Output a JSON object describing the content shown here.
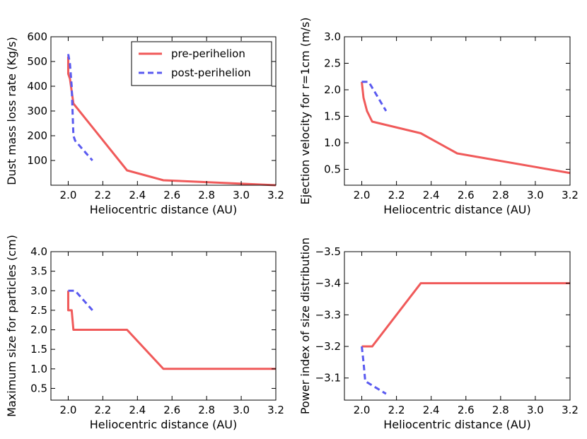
{
  "colors": {
    "pre": "#f05a5a",
    "post": "#5a5af0",
    "axis": "#000000",
    "background": "#ffffff"
  },
  "legend": {
    "placement": "top-right",
    "entries": [
      {
        "label": "pre-perihelion",
        "series": "pre"
      },
      {
        "label": "post-perihelion",
        "series": "post"
      }
    ]
  },
  "chart_data": [
    {
      "type": "line",
      "panel": "top-left",
      "title": "",
      "xlabel": "Heliocentric distance (AU)",
      "ylabel": "Dust mass loss rate (Kg/s)",
      "xlim": [
        1.9,
        3.2
      ],
      "ylim": [
        0,
        600
      ],
      "inverted_y": false,
      "grid": false,
      "has_legend": true,
      "xticks": [
        2.0,
        2.2,
        2.4,
        2.6,
        2.8,
        3.0,
        3.2
      ],
      "xtick_labels": [
        "2.0",
        "2.2",
        "2.4",
        "2.6",
        "2.8",
        "3.0",
        "3.2"
      ],
      "yticks": [
        100,
        200,
        300,
        400,
        500,
        600
      ],
      "ytick_labels": [
        "100",
        "200",
        "300",
        "400",
        "500",
        "600"
      ],
      "series": [
        {
          "name": "pre-perihelion",
          "style": "solid",
          "color_key": "pre",
          "x": [
            2.0,
            2.0,
            2.01,
            2.03,
            2.34,
            2.55,
            3.2
          ],
          "y": [
            520,
            450,
            430,
            330,
            60,
            20,
            0
          ]
        },
        {
          "name": "post-perihelion",
          "style": "dashed",
          "color_key": "post",
          "x": [
            2.0,
            2.01,
            2.02,
            2.03,
            2.04,
            2.14
          ],
          "y": [
            530,
            490,
            400,
            200,
            180,
            100
          ]
        }
      ]
    },
    {
      "type": "line",
      "panel": "top-right",
      "title": "",
      "xlabel": "Heliocentric distance (AU)",
      "ylabel": "Ejection velocity for r=1cm (m/s)",
      "xlim": [
        1.9,
        3.2
      ],
      "ylim": [
        0.2,
        3.0
      ],
      "inverted_y": false,
      "grid": false,
      "has_legend": false,
      "xticks": [
        2.0,
        2.2,
        2.4,
        2.6,
        2.8,
        3.0,
        3.2
      ],
      "xtick_labels": [
        "2.0",
        "2.2",
        "2.4",
        "2.6",
        "2.8",
        "3.0",
        "3.2"
      ],
      "yticks": [
        0.5,
        1.0,
        1.5,
        2.0,
        2.5,
        3.0
      ],
      "ytick_labels": [
        "0.5",
        "1.0",
        "1.5",
        "2.0",
        "2.5",
        "3.0"
      ],
      "series": [
        {
          "name": "pre-perihelion",
          "style": "solid",
          "color_key": "pre",
          "x": [
            2.0,
            2.01,
            2.03,
            2.06,
            2.34,
            2.55,
            3.2
          ],
          "y": [
            2.15,
            1.85,
            1.6,
            1.4,
            1.18,
            0.8,
            0.43
          ]
        },
        {
          "name": "post-perihelion",
          "style": "dashed",
          "color_key": "post",
          "x": [
            2.0,
            2.04,
            2.14
          ],
          "y": [
            2.15,
            2.15,
            1.6
          ]
        }
      ]
    },
    {
      "type": "line",
      "panel": "bottom-left",
      "title": "",
      "xlabel": "Heliocentric distance (AU)",
      "ylabel": "Maximum size for particles (cm)",
      "xlim": [
        1.9,
        3.2
      ],
      "ylim": [
        0.2,
        4.0
      ],
      "inverted_y": false,
      "grid": false,
      "has_legend": false,
      "xticks": [
        2.0,
        2.2,
        2.4,
        2.6,
        2.8,
        3.0,
        3.2
      ],
      "xtick_labels": [
        "2.0",
        "2.2",
        "2.4",
        "2.6",
        "2.8",
        "3.0",
        "3.2"
      ],
      "yticks": [
        0.5,
        1.0,
        1.5,
        2.0,
        2.5,
        3.0,
        3.5,
        4.0
      ],
      "ytick_labels": [
        "0.5",
        "1.0",
        "1.5",
        "2.0",
        "2.5",
        "3.0",
        "3.5",
        "4.0"
      ],
      "series": [
        {
          "name": "pre-perihelion",
          "style": "solid",
          "color_key": "pre",
          "x": [
            2.0,
            2.0,
            2.01,
            2.02,
            2.03,
            2.34,
            2.55,
            3.2
          ],
          "y": [
            3.0,
            2.5,
            2.5,
            2.5,
            2.0,
            2.0,
            1.0,
            1.0
          ]
        },
        {
          "name": "post-perihelion",
          "style": "dashed",
          "color_key": "post",
          "x": [
            2.0,
            2.04,
            2.14
          ],
          "y": [
            3.0,
            3.0,
            2.5
          ]
        }
      ]
    },
    {
      "type": "line",
      "panel": "bottom-right",
      "title": "",
      "xlabel": "Heliocentric distance (AU)",
      "ylabel": "Power index of size distribution",
      "xlim": [
        1.9,
        3.2
      ],
      "ylim": [
        -3.5,
        -3.03
      ],
      "inverted_y": true,
      "grid": false,
      "has_legend": false,
      "xticks": [
        2.0,
        2.2,
        2.4,
        2.6,
        2.8,
        3.0,
        3.2
      ],
      "xtick_labels": [
        "2.0",
        "2.2",
        "2.4",
        "2.6",
        "2.8",
        "3.0",
        "3.2"
      ],
      "yticks": [
        -3.5,
        -3.4,
        -3.3,
        -3.2,
        -3.1
      ],
      "ytick_labels": [
        "−3.5",
        "−3.4",
        "−3.3",
        "−3.2",
        "−3.1"
      ],
      "series": [
        {
          "name": "pre-perihelion",
          "style": "solid",
          "color_key": "pre",
          "x": [
            2.0,
            2.06,
            2.34,
            3.2
          ],
          "y": [
            -3.2,
            -3.2,
            -3.4,
            -3.4
          ]
        },
        {
          "name": "post-perihelion",
          "style": "dashed",
          "color_key": "post",
          "x": [
            2.0,
            2.01,
            2.02,
            2.05,
            2.14
          ],
          "y": [
            -3.2,
            -3.15,
            -3.09,
            -3.08,
            -3.05
          ]
        }
      ]
    }
  ]
}
